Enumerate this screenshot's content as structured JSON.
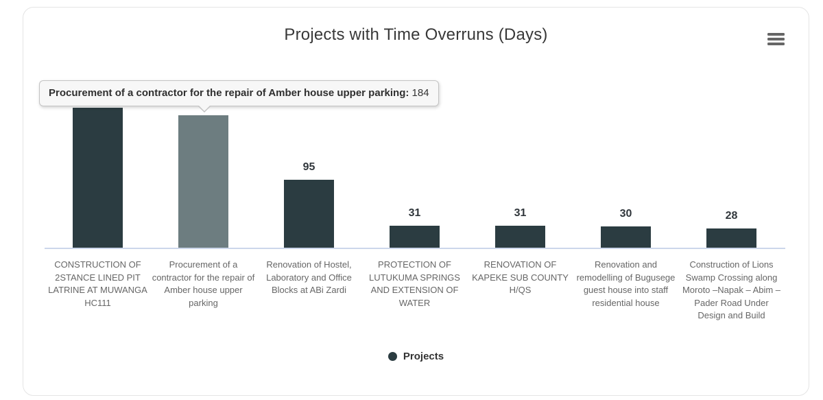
{
  "chart": {
    "title": "Projects with Time Overruns (Days)",
    "menu_icon": "hamburger-icon",
    "legend": {
      "label": "Projects",
      "marker_color": "#2b3c41"
    }
  },
  "tooltip": {
    "label": "Procurement of a contractor for the repair of Amber house upper parking:",
    "value": " 184"
  },
  "chart_data": {
    "type": "bar",
    "title": "Projects with Time Overruns (Days)",
    "series_name": "Projects",
    "categories": [
      "CONSTRUCTION OF 2STANCE LINED PIT LATRINE AT MUWANGA HC111",
      "Procurement of a contractor for the repair of Amber house upper parking",
      "Renovation of Hostel, Laboratory and Office Blocks at ABi Zardi",
      "PROTECTION OF LUTUKUMA SPRINGS AND EXTENSION OF WATER",
      "RENOVATION OF KAPEKE SUB COUNTY H/QS",
      "Renovation and remodelling of Bugusege guest house into staff residential house",
      "Construction of Lions Swamp Crossing along Moroto –Napak – Abim – Pader Road Under Design and Build"
    ],
    "values": [
      195,
      184,
      95,
      31,
      31,
      30,
      28
    ],
    "visible_value_labels": [
      "",
      "",
      "95",
      "31",
      "31",
      "30",
      "28"
    ],
    "hover_index": 1,
    "bar_color": "#2b3c41",
    "hover_bar_color": "#6d7d80",
    "axis_line_color": "#ccd6eb",
    "ylim": [
      0,
      250
    ],
    "grid": false,
    "xlabel": "",
    "ylabel": "",
    "legend_position": "bottom-center",
    "tooltip_point": "Procurement of a contractor for the repair of Amber house upper parking: 184"
  }
}
